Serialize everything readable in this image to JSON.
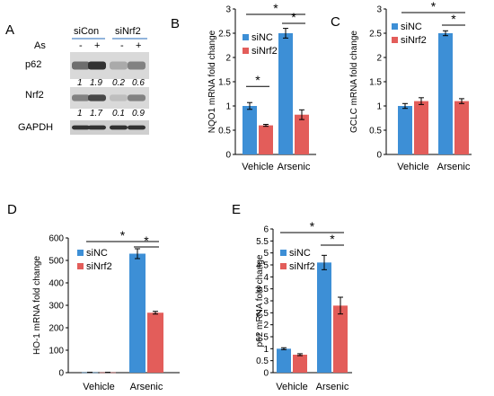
{
  "figure": {
    "panel_labels": [
      "A",
      "B",
      "C",
      "D",
      "E"
    ],
    "blot": {
      "groups": [
        "siCon",
        "siNrf2"
      ],
      "row_label": "As",
      "lane_signs": [
        "-",
        "+",
        "-",
        "+"
      ],
      "proteins": [
        {
          "name": "p62",
          "quant": [
            "1",
            "1.9",
            "0.2",
            "0.6"
          ],
          "intensity": [
            0.55,
            0.85,
            0.25,
            0.45
          ]
        },
        {
          "name": "Nrf2",
          "quant": [
            "1",
            "1.7",
            "0.1",
            "0.9"
          ],
          "intensity": [
            0.45,
            0.75,
            0.15,
            0.45
          ]
        },
        {
          "name": "GAPDH",
          "quant": [],
          "intensity": [
            0.85,
            0.85,
            0.85,
            0.85
          ]
        }
      ]
    },
    "significance_marker": "*"
  },
  "chart_data": [
    {
      "type": "bar",
      "panel": "B",
      "categories": [
        "Vehicle",
        "Arsenic"
      ],
      "series": [
        {
          "name": "siNC",
          "values": [
            1.0,
            2.5
          ],
          "errors": [
            0.07,
            0.1
          ]
        },
        {
          "name": "siNrf2",
          "values": [
            0.6,
            0.82
          ],
          "errors": [
            0.02,
            0.1
          ]
        }
      ],
      "ylabel": "NQO1 mRNA fold change",
      "ylim": [
        0,
        3
      ],
      "yticks": [
        "0",
        "0.5",
        "1",
        "1.5",
        "2",
        "2.5",
        "3"
      ],
      "legend": "top-left",
      "colors": {
        "siNC": "#3d8fd6",
        "siNrf2": "#e35d5a"
      },
      "significance": [
        {
          "from": "Vehicle siNC",
          "to": "Vehicle siNrf2",
          "label": "*"
        },
        {
          "from": "Vehicle siNC",
          "to": "Arsenic siNRF2",
          "label": "*"
        },
        {
          "from": "Arsenic siNC",
          "to": "Arsenic siNrf2",
          "label": "*"
        }
      ]
    },
    {
      "type": "bar",
      "panel": "C",
      "categories": [
        "Vehicle",
        "Arsenic"
      ],
      "series": [
        {
          "name": "siNC",
          "values": [
            1.0,
            2.5
          ],
          "errors": [
            0.05,
            0.05
          ]
        },
        {
          "name": "siNrf2",
          "values": [
            1.1,
            1.1
          ],
          "errors": [
            0.07,
            0.05
          ]
        }
      ],
      "ylabel": "GCLC mRNA fold change",
      "ylim": [
        0,
        3
      ],
      "yticks": [
        "0",
        "0.5",
        "1",
        "1.5",
        "2",
        "2.5",
        "3"
      ],
      "legend": "top-left",
      "colors": {
        "siNC": "#3d8fd6",
        "siNrf2": "#e35d5a"
      },
      "significance": [
        {
          "from": "Vehicle siNC",
          "to": "Arsenic siNrf2",
          "label": "*"
        },
        {
          "from": "Arsenic siNC",
          "to": "Arsenic siNrf2",
          "label": "*"
        }
      ]
    },
    {
      "type": "bar",
      "panel": "D",
      "categories": [
        "Vehicle",
        "Arsenic"
      ],
      "series": [
        {
          "name": "siNC",
          "values": [
            1,
            530
          ],
          "errors": [
            0.5,
            22
          ]
        },
        {
          "name": "siNrf2",
          "values": [
            1,
            267
          ],
          "errors": [
            0.5,
            6
          ]
        }
      ],
      "ylabel": "HO-1 mRNA fold change",
      "ylim": [
        0,
        600
      ],
      "yticks": [
        "0",
        "100",
        "200",
        "300",
        "400",
        "500",
        "600"
      ],
      "legend": "top-left",
      "colors": {
        "siNC": "#3d8fd6",
        "siNrf2": "#e35d5a"
      },
      "significance": [
        {
          "from": "Vehicle siNC",
          "to": "Arsenic siNrf2",
          "label": "*"
        },
        {
          "from": "Arsenic siNC",
          "to": "Arsenic siNrf2",
          "label": "*"
        }
      ]
    },
    {
      "type": "bar",
      "panel": "E",
      "categories": [
        "Vehicle",
        "Arsenic"
      ],
      "series": [
        {
          "name": "siNC",
          "values": [
            1.0,
            4.6
          ],
          "errors": [
            0.04,
            0.3
          ]
        },
        {
          "name": "siNrf2",
          "values": [
            0.75,
            2.8
          ],
          "errors": [
            0.04,
            0.35
          ]
        }
      ],
      "ylabel": "p62 mRNA fold change",
      "ylim": [
        0,
        6
      ],
      "yticks": [
        "0",
        "0.5",
        "1",
        "1.5",
        "2",
        "2.5",
        "3",
        "3.5",
        "4",
        "4.5",
        "5",
        "5.5",
        "6"
      ],
      "legend": "top-left",
      "colors": {
        "siNC": "#3d8fd6",
        "siNrf2": "#e35d5a"
      },
      "significance": [
        {
          "from": "Vehicle siNC",
          "to": "Arsenic siNrf2",
          "label": "*"
        },
        {
          "from": "Arsenic siNC",
          "to": "Arsenic siNrf2",
          "label": "*"
        }
      ]
    }
  ]
}
